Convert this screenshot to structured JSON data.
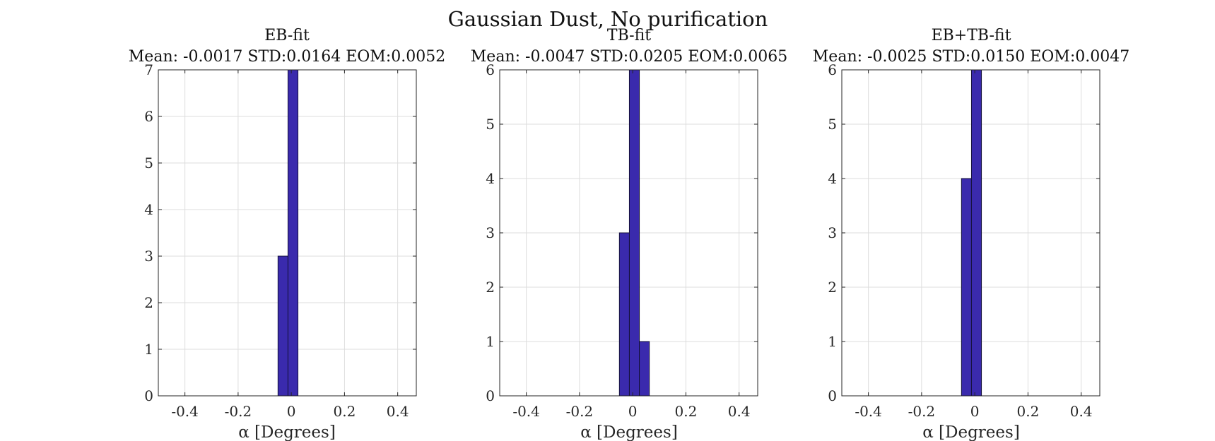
{
  "figure_title": "Gaussian Dust, No purification",
  "chart_data": [
    {
      "type": "bar",
      "title": "EB-fit",
      "subtitle": "Mean: -0.0017 STD:0.0164 EOM:0.0052",
      "xlabel": "α [Degrees]",
      "ylabel": "",
      "xlim": [
        -0.5,
        0.47
      ],
      "ylim": [
        0,
        7
      ],
      "xticks": [
        "-0.4",
        "-0.2",
        "0",
        "0.2",
        "0.4"
      ],
      "yticks": [
        "0",
        "1",
        "2",
        "3",
        "4",
        "5",
        "6",
        "7"
      ],
      "grid": true,
      "bin_width": 0.0375,
      "bins": [
        {
          "x0": -0.05,
          "x1": -0.0125,
          "count": 3
        },
        {
          "x0": -0.0125,
          "x1": 0.025,
          "count": 7
        }
      ]
    },
    {
      "type": "bar",
      "title": "TB-fit",
      "subtitle": "Mean: -0.0047 STD:0.0205 EOM:0.0065",
      "xlabel": "α [Degrees]",
      "ylabel": "",
      "xlim": [
        -0.5,
        0.47
      ],
      "ylim": [
        0,
        6
      ],
      "xticks": [
        "-0.4",
        "-0.2",
        "0",
        "0.2",
        "0.4"
      ],
      "yticks": [
        "0",
        "1",
        "2",
        "3",
        "4",
        "5",
        "6"
      ],
      "grid": true,
      "bin_width": 0.0375,
      "bins": [
        {
          "x0": -0.05,
          "x1": -0.0125,
          "count": 3
        },
        {
          "x0": -0.0125,
          "x1": 0.025,
          "count": 6
        },
        {
          "x0": 0.025,
          "x1": 0.0625,
          "count": 1
        }
      ]
    },
    {
      "type": "bar",
      "title": "EB+TB-fit",
      "subtitle": "Mean: -0.0025 STD:0.0150 EOM:0.0047",
      "xlabel": "α [Degrees]",
      "ylabel": "",
      "xlim": [
        -0.5,
        0.47
      ],
      "ylim": [
        0,
        6
      ],
      "xticks": [
        "-0.4",
        "-0.2",
        "0",
        "0.2",
        "0.4"
      ],
      "yticks": [
        "0",
        "1",
        "2",
        "3",
        "4",
        "5",
        "6"
      ],
      "grid": true,
      "bin_width": 0.0375,
      "bins": [
        {
          "x0": -0.05,
          "x1": -0.0125,
          "count": 4
        },
        {
          "x0": -0.0125,
          "x1": 0.025,
          "count": 6
        }
      ]
    }
  ],
  "colors": {
    "bar_fill": "#3A2AAD",
    "bar_edge": "#15113A",
    "grid": "#DDDDDD",
    "axis": "#262626"
  }
}
